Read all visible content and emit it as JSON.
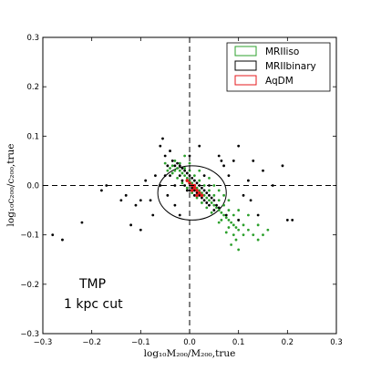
{
  "chart_data": {
    "type": "scatter",
    "xlabel": "log₁₀M₂₀₀/M₂₀₀,true",
    "ylabel": "log₁₀c₂₀₀/c₂₀₀,true",
    "xlim": [
      -0.3,
      0.3
    ],
    "ylim": [
      -0.3,
      0.3
    ],
    "xticks": [
      "−0.3",
      "−0.2",
      "−0.1",
      "0.0",
      "0.1",
      "0.2",
      "0.3"
    ],
    "yticks": [
      "0.3",
      "0.2",
      "0.1",
      "0.0",
      "−0.1",
      "−0.2",
      "−0.3"
    ],
    "grid": false,
    "legend_position": "top-right",
    "annotations": [
      "TMP",
      "1 kpc cut"
    ],
    "reference_lines": {
      "x": 0,
      "y": 0,
      "style": "dashed"
    },
    "series": [
      {
        "name": "MRIIiso",
        "color": "#2ca02c",
        "marker": "dot",
        "points": [
          [
            -0.05,
            0.045
          ],
          [
            -0.04,
            0.035
          ],
          [
            -0.035,
            0.04
          ],
          [
            -0.03,
            0.03
          ],
          [
            -0.025,
            0.035
          ],
          [
            -0.02,
            0.03
          ],
          [
            -0.015,
            0.025
          ],
          [
            -0.01,
            0.02
          ],
          [
            -0.005,
            0.015
          ],
          [
            0.0,
            0.01
          ],
          [
            0.005,
            0.005
          ],
          [
            0.01,
            0.0
          ],
          [
            0.015,
            -0.005
          ],
          [
            0.02,
            -0.01
          ],
          [
            0.025,
            -0.015
          ],
          [
            0.03,
            -0.02
          ],
          [
            0.035,
            -0.025
          ],
          [
            0.04,
            -0.03
          ],
          [
            0.045,
            -0.035
          ],
          [
            0.05,
            -0.04
          ],
          [
            0.055,
            -0.045
          ],
          [
            0.06,
            -0.05
          ],
          [
            0.065,
            -0.055
          ],
          [
            0.07,
            -0.06
          ],
          [
            0.075,
            -0.065
          ],
          [
            0.08,
            -0.07
          ],
          [
            0.085,
            -0.075
          ],
          [
            0.09,
            -0.08
          ],
          [
            0.095,
            -0.085
          ],
          [
            0.1,
            -0.09
          ],
          [
            -0.03,
            0.05
          ],
          [
            -0.02,
            0.045
          ],
          [
            -0.01,
            0.035
          ],
          [
            0.0,
            0.03
          ],
          [
            0.01,
            0.02
          ],
          [
            0.02,
            0.01
          ],
          [
            0.03,
            0.0
          ],
          [
            0.04,
            -0.01
          ],
          [
            0.05,
            -0.02
          ],
          [
            0.06,
            -0.03
          ],
          [
            0.07,
            -0.04
          ],
          [
            0.08,
            -0.05
          ],
          [
            0.09,
            -0.06
          ],
          [
            0.1,
            -0.07
          ],
          [
            0.11,
            -0.08
          ],
          [
            0.12,
            -0.09
          ],
          [
            0.13,
            -0.1
          ],
          [
            0.14,
            -0.11
          ],
          [
            0.06,
            -0.075
          ],
          [
            0.075,
            -0.095
          ],
          [
            0.09,
            -0.1
          ],
          [
            0.1,
            -0.13
          ],
          [
            0.08,
            -0.085
          ],
          [
            0.065,
            -0.07
          ],
          [
            0.045,
            -0.055
          ],
          [
            0.035,
            -0.045
          ],
          [
            0.025,
            -0.035
          ],
          [
            0.015,
            -0.025
          ],
          [
            0.005,
            -0.015
          ],
          [
            -0.005,
            -0.005
          ],
          [
            -0.015,
            0.005
          ],
          [
            -0.025,
            0.015
          ],
          [
            -0.035,
            0.025
          ],
          [
            -0.045,
            0.03
          ],
          [
            -0.01,
            0.06
          ],
          [
            0.0,
            0.045
          ],
          [
            0.02,
            0.03
          ],
          [
            0.04,
            0.015
          ],
          [
            0.05,
            0.0
          ],
          [
            0.06,
            -0.01
          ],
          [
            0.07,
            -0.02
          ],
          [
            0.08,
            -0.03
          ],
          [
            0.1,
            -0.05
          ],
          [
            0.12,
            -0.06
          ],
          [
            0.14,
            -0.08
          ],
          [
            0.16,
            -0.09
          ],
          [
            0.15,
            -0.1
          ],
          [
            0.11,
            -0.1
          ],
          [
            0.095,
            -0.11
          ],
          [
            0.085,
            -0.12
          ]
        ]
      },
      {
        "name": "MRIIbinary",
        "color": "#000000",
        "marker": "dot",
        "points": [
          [
            -0.28,
            -0.1
          ],
          [
            -0.26,
            -0.11
          ],
          [
            -0.22,
            -0.075
          ],
          [
            -0.18,
            -0.01
          ],
          [
            -0.17,
            0.0
          ],
          [
            -0.14,
            -0.03
          ],
          [
            -0.13,
            -0.02
          ],
          [
            -0.12,
            -0.08
          ],
          [
            -0.11,
            -0.04
          ],
          [
            -0.1,
            -0.03
          ],
          [
            -0.1,
            -0.09
          ],
          [
            -0.09,
            0.01
          ],
          [
            -0.08,
            -0.03
          ],
          [
            -0.075,
            -0.06
          ],
          [
            -0.07,
            0.02
          ],
          [
            -0.06,
            0.08
          ],
          [
            -0.055,
            0.095
          ],
          [
            -0.05,
            0.06
          ],
          [
            -0.045,
            -0.02
          ],
          [
            -0.04,
            0.07
          ],
          [
            -0.04,
            0.02
          ],
          [
            -0.035,
            0.05
          ],
          [
            -0.03,
            0.04
          ],
          [
            -0.03,
            0.0
          ],
          [
            -0.025,
            0.045
          ],
          [
            -0.02,
            0.04
          ],
          [
            -0.02,
            0.02
          ],
          [
            -0.015,
            0.035
          ],
          [
            -0.015,
            0.01
          ],
          [
            -0.01,
            0.03
          ],
          [
            -0.01,
            0.0
          ],
          [
            -0.005,
            0.025
          ],
          [
            -0.005,
            -0.01
          ],
          [
            0.0,
            0.02
          ],
          [
            0.0,
            0.005
          ],
          [
            0.0,
            -0.01
          ],
          [
            0.005,
            0.015
          ],
          [
            0.005,
            -0.005
          ],
          [
            0.01,
            0.01
          ],
          [
            0.01,
            -0.01
          ],
          [
            0.01,
            -0.02
          ],
          [
            0.015,
            0.005
          ],
          [
            0.015,
            -0.015
          ],
          [
            0.02,
            0.0
          ],
          [
            0.02,
            -0.02
          ],
          [
            0.025,
            -0.005
          ],
          [
            0.025,
            -0.025
          ],
          [
            0.03,
            -0.01
          ],
          [
            0.03,
            -0.03
          ],
          [
            0.035,
            -0.015
          ],
          [
            0.035,
            -0.035
          ],
          [
            0.04,
            -0.02
          ],
          [
            0.04,
            -0.04
          ],
          [
            0.045,
            -0.025
          ],
          [
            0.05,
            -0.03
          ],
          [
            0.05,
            -0.05
          ],
          [
            0.055,
            -0.04
          ],
          [
            0.06,
            -0.045
          ],
          [
            0.06,
            0.06
          ],
          [
            0.065,
            0.05
          ],
          [
            0.07,
            0.04
          ],
          [
            0.075,
            -0.06
          ],
          [
            0.08,
            0.02
          ],
          [
            0.09,
            0.05
          ],
          [
            0.1,
            0.08
          ],
          [
            0.1,
            -0.07
          ],
          [
            0.11,
            -0.02
          ],
          [
            0.12,
            0.01
          ],
          [
            0.125,
            -0.03
          ],
          [
            0.13,
            0.05
          ],
          [
            0.14,
            -0.06
          ],
          [
            0.15,
            0.03
          ],
          [
            0.17,
            0.0
          ],
          [
            0.19,
            0.04
          ],
          [
            0.2,
            -0.07
          ],
          [
            0.21,
            -0.07
          ],
          [
            -0.03,
            -0.04
          ],
          [
            -0.02,
            -0.06
          ],
          [
            0.0,
            0.06
          ],
          [
            0.02,
            0.08
          ],
          [
            -0.045,
            0.04
          ],
          [
            -0.05,
            0.02
          ],
          [
            -0.06,
            0.0
          ],
          [
            0.03,
            0.02
          ],
          [
            0.04,
            0.0
          ]
        ]
      },
      {
        "name": "AqDM",
        "color": "#e41a1c",
        "marker": "dot",
        "points": [
          [
            -0.005,
            0.01
          ],
          [
            0.0,
            0.005
          ],
          [
            0.005,
            0.0
          ],
          [
            0.01,
            -0.005
          ],
          [
            0.015,
            -0.01
          ],
          [
            0.02,
            -0.015
          ],
          [
            0.01,
            0.0
          ],
          [
            0.015,
            -0.02
          ],
          [
            0.025,
            -0.02
          ],
          [
            0.005,
            -0.01
          ]
        ]
      }
    ],
    "ellipses": [
      {
        "color": "#000000",
        "cx": 0.005,
        "cy": -0.015,
        "rx": 0.07,
        "ry": 0.055,
        "angle": 0
      }
    ]
  }
}
